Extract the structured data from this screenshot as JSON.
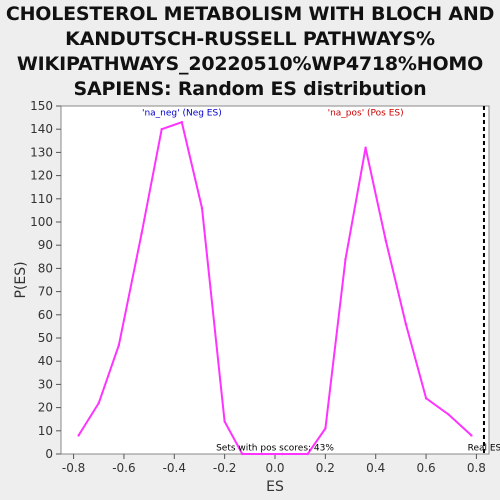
{
  "chart_data": {
    "type": "line",
    "title_lines": [
      "CHOLESTEROL METABOLISM WITH BLOCH AND",
      "KANDUTSCH-RUSSELL PATHWAYS%",
      "WIKIPATHWAYS_20220510%WP4718%HOMO",
      "SAPIENS: Random ES distribution"
    ],
    "xlabel": "ES",
    "ylabel": "P(ES)",
    "xlim": [
      -0.85,
      0.85
    ],
    "ylim": [
      0,
      150
    ],
    "x_ticks": [
      -0.8,
      -0.6,
      -0.4,
      -0.2,
      0.0,
      0.2,
      0.4,
      0.6,
      0.8
    ],
    "x_tick_labels": [
      "-0.8",
      "-0.6",
      "-0.4",
      "-0.2",
      "0.0",
      "0.2",
      "0.4",
      "0.6",
      "0.8"
    ],
    "y_ticks": [
      0,
      10,
      20,
      30,
      40,
      50,
      60,
      70,
      80,
      90,
      100,
      110,
      120,
      130,
      140,
      150
    ],
    "series": [
      {
        "color": "#ff33ff",
        "points": [
          [
            -0.78,
            8
          ],
          [
            -0.7,
            22
          ],
          [
            -0.62,
            47
          ],
          [
            -0.53,
            95
          ],
          [
            -0.45,
            140
          ],
          [
            -0.37,
            143
          ],
          [
            -0.29,
            106
          ],
          [
            -0.2,
            14
          ],
          [
            -0.13,
            0
          ],
          [
            -0.05,
            0
          ],
          [
            0.03,
            0
          ],
          [
            0.13,
            0
          ],
          [
            0.2,
            11
          ],
          [
            0.28,
            84
          ],
          [
            0.36,
            132
          ],
          [
            0.44,
            92
          ],
          [
            0.52,
            56
          ],
          [
            0.6,
            24
          ],
          [
            0.69,
            17
          ],
          [
            0.78,
            8
          ]
        ]
      }
    ],
    "annotations": [
      {
        "text": "'na_neg' (Neg ES)",
        "x": -0.37,
        "y": 146,
        "color": "#0000cc"
      },
      {
        "text": "'na_pos' (Pos ES)",
        "x": 0.36,
        "y": 146,
        "color": "#cc0000"
      },
      {
        "text": "Sets with pos scores: 43%",
        "x": 0.0,
        "y": 1.5,
        "color": "#000000"
      },
      {
        "text": "Real ES",
        "x": 0.765,
        "y": 1.5,
        "color": "#000000"
      }
    ],
    "real_es": 0.83,
    "grid": false,
    "background": "#ffffff"
  }
}
